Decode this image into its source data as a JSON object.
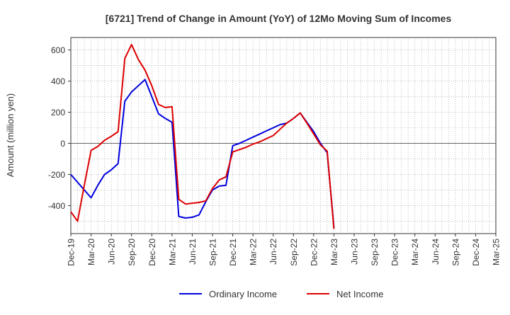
{
  "chart_data": {
    "type": "line",
    "title": "[6721]  Trend of Change in Amount (YoY) of 12Mo Moving Sum of Incomes",
    "xlabel": "",
    "ylabel": "Amount (million yen)",
    "ylim": [
      -580,
      680
    ],
    "yticks": [
      -400,
      -200,
      0,
      200,
      400,
      600
    ],
    "ytick_labels": [
      "-400",
      "-200",
      "0",
      "200",
      "400",
      "600"
    ],
    "x_tick_labels": [
      "Dec-19",
      "Mar-20",
      "Jun-20",
      "Sep-20",
      "Dec-20",
      "Mar-21",
      "Jun-21",
      "Sep-21",
      "Dec-21",
      "Mar-22",
      "Jun-22",
      "Sep-22",
      "Dec-22",
      "Mar-23",
      "Jun-23",
      "Sep-23",
      "Dec-23",
      "Mar-24",
      "Jun-24",
      "Sep-24",
      "Dec-24",
      "Mar-25"
    ],
    "grid": true,
    "legend_position": "bottom",
    "series": [
      {
        "name": "Ordinary Income",
        "color": "#0000dd",
        "values": [
          -200,
          -250,
          -300,
          -350,
          -270,
          -200,
          -170,
          -130,
          270,
          330,
          370,
          410,
          300,
          190,
          160,
          135,
          -470,
          -480,
          -475,
          -460,
          -375,
          -300,
          -275,
          -270,
          -15,
          0,
          20,
          40,
          60,
          80,
          100,
          120,
          130,
          160,
          195,
          135,
          75,
          0,
          -60,
          -540
        ]
      },
      {
        "name": "Net Income",
        "color": "#dd0000",
        "values": [
          -440,
          -500,
          -270,
          -45,
          -20,
          20,
          45,
          75,
          545,
          635,
          540,
          470,
          370,
          250,
          230,
          235,
          -360,
          -390,
          -385,
          -380,
          -370,
          -290,
          -235,
          -215,
          -55,
          -40,
          -25,
          -5,
          10,
          30,
          50,
          90,
          130,
          160,
          195,
          130,
          60,
          -10,
          -50,
          -550
        ]
      }
    ]
  }
}
